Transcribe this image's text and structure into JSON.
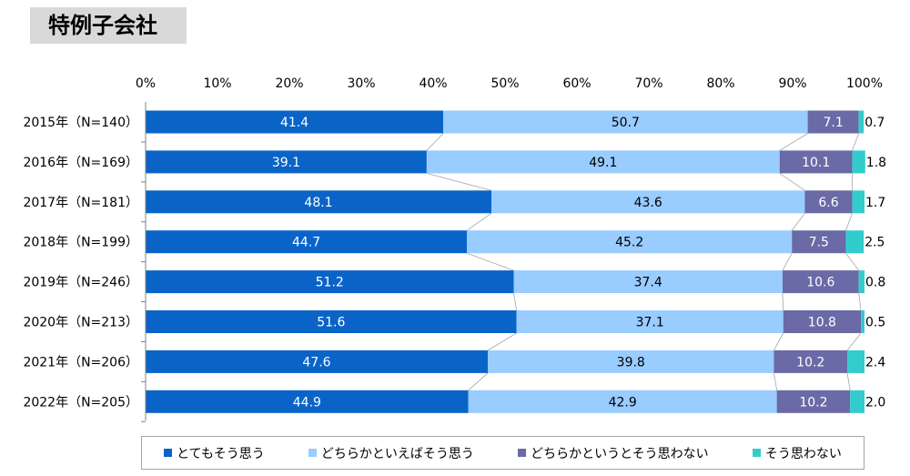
{
  "title": "特例子会社",
  "chart_data": {
    "type": "bar",
    "orientation": "horizontal",
    "stacked": true,
    "xlim": [
      0,
      100
    ],
    "xticks": [
      "0%",
      "10%",
      "20%",
      "30%",
      "40%",
      "50%",
      "60%",
      "70%",
      "80%",
      "90%",
      "100%"
    ],
    "categories": [
      "2015年（N=140）",
      "2016年（N=169）",
      "2017年（N=181）",
      "2018年（N=199）",
      "2019年（N=246）",
      "2020年（N=213）",
      "2021年（N=206）",
      "2022年（N=205）"
    ],
    "series": [
      {
        "name": "とてもそう思う",
        "color": "#0a64c8",
        "label_color": "#ffffff",
        "values": [
          41.4,
          39.1,
          48.1,
          44.7,
          51.2,
          51.6,
          47.6,
          44.9
        ]
      },
      {
        "name": "どちらかといえばそう思う",
        "color": "#99ccff",
        "label_color": "#000000",
        "values": [
          50.7,
          49.1,
          43.6,
          45.2,
          37.4,
          37.1,
          39.8,
          42.9
        ]
      },
      {
        "name": "どちらかというとそう思わない",
        "color": "#6a6aa6",
        "label_color": "#ffffff",
        "values": [
          7.1,
          10.1,
          6.6,
          7.5,
          10.6,
          10.8,
          10.2,
          10.2
        ]
      },
      {
        "name": "そう思わない",
        "color": "#33cccc",
        "label_color": "#000000",
        "values": [
          0.7,
          1.8,
          1.7,
          2.5,
          0.8,
          0.5,
          2.4,
          2.0
        ]
      }
    ],
    "legend_position": "bottom",
    "grid": false
  }
}
